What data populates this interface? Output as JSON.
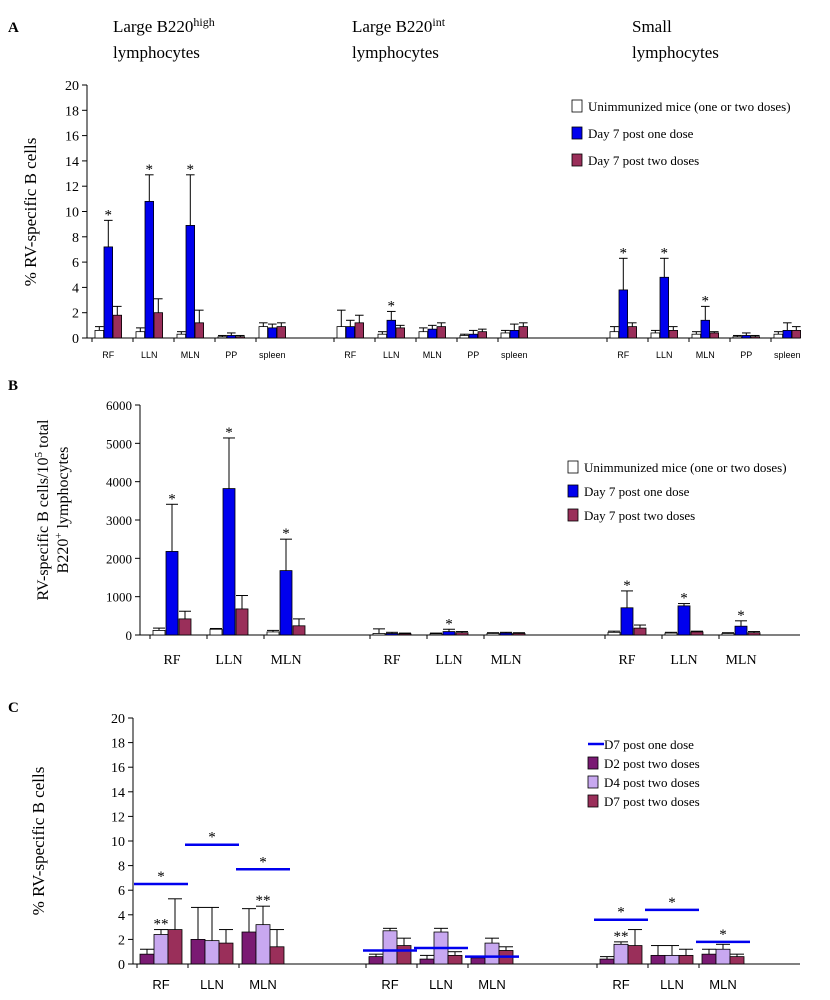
{
  "colors": {
    "unimmunized": "#ffffff",
    "one_dose": "#0000ee",
    "two_doses": "#9a2f5a",
    "d2": "#7a1a73",
    "d4": "#c8a8f0",
    "d7": "#9a2f5a",
    "line": "#0000ee"
  },
  "chart_data": [
    {
      "id": "A",
      "type": "bar",
      "panel_label": "A",
      "ylabel": "% RV-specific B cells",
      "ylim": [
        0,
        20
      ],
      "yticks": [
        "0",
        "2",
        "4",
        "6",
        "8",
        "10",
        "12",
        "14",
        "16",
        "18",
        "20"
      ],
      "group_titles": [
        {
          "line1": "Large B220",
          "sup": "high",
          "line2": "lymphocytes"
        },
        {
          "line1": "Large B220",
          "sup": "int",
          "line2": "lymphocytes"
        },
        {
          "line1": "Small",
          "sup": "",
          "line2": "lymphocytes"
        }
      ],
      "tick_labels": [
        [
          "RF",
          "LLN",
          "MLN",
          "PP",
          "spleen"
        ],
        [
          "RF",
          "LLN",
          "MLN",
          "PP",
          "spleen"
        ],
        [
          "RF",
          "LLN",
          "MLN",
          "PP",
          "spleen"
        ]
      ],
      "legend": [
        {
          "label": "Unimmunized mice (one or two doses)",
          "color": "#ffffff"
        },
        {
          "label": "Day 7 post one dose",
          "color": "#0000ee"
        },
        {
          "label": "Day 7 post two doses",
          "color": "#9a2f5a"
        }
      ],
      "series_colors": [
        "#ffffff",
        "#0000ee",
        "#9a2f5a"
      ],
      "values": [
        [
          [
            0.6,
            7.2,
            1.8
          ],
          [
            0.5,
            10.8,
            2.0
          ],
          [
            0.3,
            8.9,
            1.2
          ],
          [
            0.1,
            0.2,
            0.1
          ],
          [
            0.9,
            0.8,
            0.9
          ]
        ],
        [
          [
            0.9,
            0.9,
            1.2
          ],
          [
            0.3,
            1.4,
            0.8
          ],
          [
            0.5,
            0.7,
            0.9
          ],
          [
            0.2,
            0.3,
            0.5
          ],
          [
            0.4,
            0.6,
            0.9
          ]
        ],
        [
          [
            0.5,
            3.8,
            0.9
          ],
          [
            0.4,
            4.8,
            0.6
          ],
          [
            0.3,
            1.4,
            0.4
          ],
          [
            0.1,
            0.2,
            0.1
          ],
          [
            0.3,
            0.6,
            0.6
          ]
        ]
      ],
      "errors": [
        [
          [
            0.3,
            2.1,
            0.7
          ],
          [
            0.3,
            2.1,
            1.1
          ],
          [
            0.2,
            4.0,
            1.0
          ],
          [
            0.1,
            0.2,
            0.1
          ],
          [
            0.3,
            0.3,
            0.3
          ]
        ],
        [
          [
            1.3,
            0.5,
            0.6
          ],
          [
            0.2,
            0.7,
            0.2
          ],
          [
            0.3,
            0.3,
            0.3
          ],
          [
            0.1,
            0.3,
            0.2
          ],
          [
            0.2,
            0.5,
            0.3
          ]
        ],
        [
          [
            0.4,
            2.5,
            0.3
          ],
          [
            0.2,
            1.5,
            0.3
          ],
          [
            0.2,
            1.1,
            0.1
          ],
          [
            0.1,
            0.2,
            0.1
          ],
          [
            0.2,
            0.6,
            0.3
          ]
        ]
      ],
      "stars": [
        [
          [
            false,
            true,
            false
          ],
          [
            false,
            true,
            false
          ],
          [
            false,
            true,
            false
          ],
          [
            false,
            false,
            false
          ],
          [
            false,
            false,
            false
          ]
        ],
        [
          [
            false,
            false,
            false
          ],
          [
            false,
            true,
            false
          ],
          [
            false,
            false,
            false
          ],
          [
            false,
            false,
            false
          ],
          [
            false,
            false,
            false
          ]
        ],
        [
          [
            false,
            true,
            false
          ],
          [
            false,
            true,
            false
          ],
          [
            false,
            true,
            false
          ],
          [
            false,
            false,
            false
          ],
          [
            false,
            false,
            false
          ]
        ]
      ],
      "star_glyph": "*"
    },
    {
      "id": "B",
      "type": "bar",
      "panel_label": "B",
      "ylabel_line1": "RV-specific B cells/10",
      "ylabel_sup1": "5",
      "ylabel_line1b": " total",
      "ylabel_line2": "B220",
      "ylabel_sup2": "+",
      "ylabel_line2b": " lymphocytes",
      "ylim": [
        0,
        6000
      ],
      "yticks": [
        "0",
        "1000",
        "2000",
        "3000",
        "4000",
        "5000",
        "6000"
      ],
      "tick_labels": [
        [
          "RF",
          "LLN",
          "MLN"
        ],
        [
          "RF",
          "LLN",
          "MLN"
        ],
        [
          "RF",
          "LLN",
          "MLN"
        ]
      ],
      "legend": [
        {
          "label": "Unimmunized mice (one or two doses)",
          "color": "#ffffff"
        },
        {
          "label": "Day 7 post one dose",
          "color": "#0000ee"
        },
        {
          "label": "Day 7 post two doses",
          "color": "#9a2f5a"
        }
      ],
      "series_colors": [
        "#ffffff",
        "#0000ee",
        "#9a2f5a"
      ],
      "values": [
        [
          [
            120,
            2180,
            420
          ],
          [
            150,
            3820,
            680
          ],
          [
            80,
            1680,
            240
          ]
        ],
        [
          [
            40,
            40,
            30
          ],
          [
            30,
            90,
            60
          ],
          [
            40,
            50,
            40
          ]
        ],
        [
          [
            70,
            710,
            180
          ],
          [
            50,
            760,
            80
          ],
          [
            40,
            230,
            60
          ]
        ]
      ],
      "errors": [
        [
          [
            60,
            1230,
            200
          ],
          [
            20,
            1320,
            350
          ],
          [
            40,
            820,
            180
          ]
        ],
        [
          [
            120,
            30,
            20
          ],
          [
            20,
            60,
            30
          ],
          [
            20,
            20,
            20
          ]
        ],
        [
          [
            30,
            440,
            80
          ],
          [
            20,
            60,
            20
          ],
          [
            20,
            140,
            30
          ]
        ]
      ],
      "stars": [
        [
          [
            false,
            true,
            false
          ],
          [
            false,
            true,
            false
          ],
          [
            false,
            true,
            false
          ]
        ],
        [
          [
            false,
            false,
            false
          ],
          [
            false,
            true,
            false
          ],
          [
            false,
            false,
            false
          ]
        ],
        [
          [
            false,
            true,
            false
          ],
          [
            false,
            true,
            false
          ],
          [
            false,
            true,
            false
          ]
        ]
      ],
      "star_glyph": "*"
    },
    {
      "id": "C",
      "type": "bar",
      "panel_label": "C",
      "ylabel": "% RV-specific B cells",
      "ylim": [
        0,
        20
      ],
      "yticks": [
        "0",
        "2",
        "4",
        "6",
        "8",
        "10",
        "12",
        "14",
        "16",
        "18",
        "20"
      ],
      "tick_labels": [
        [
          "RF",
          "LLN",
          "MLN"
        ],
        [
          "RF",
          "LLN",
          "MLN"
        ],
        [
          "RF",
          "LLN",
          "MLN"
        ]
      ],
      "legend": [
        {
          "label": "D7 post one dose",
          "kind": "line",
          "color": "#0000ee"
        },
        {
          "label": "D2 post two doses",
          "kind": "bar",
          "color": "#7a1a73"
        },
        {
          "label": "D4 post two doses",
          "kind": "bar",
          "color": "#c8a8f0"
        },
        {
          "label": "D7 post two doses",
          "kind": "bar",
          "color": "#9a2f5a"
        }
      ],
      "series_colors": [
        "#7a1a73",
        "#c8a8f0",
        "#9a2f5a"
      ],
      "values": [
        [
          [
            0.8,
            2.4,
            2.8
          ],
          [
            2.0,
            1.9,
            1.7
          ],
          [
            2.6,
            3.2,
            1.4
          ]
        ],
        [
          [
            0.6,
            2.7,
            1.5
          ],
          [
            0.4,
            2.6,
            0.7
          ],
          [
            0.5,
            1.7,
            1.1
          ]
        ],
        [
          [
            0.4,
            1.6,
            1.5
          ],
          [
            0.7,
            0.7,
            0.7
          ],
          [
            0.8,
            1.2,
            0.6
          ]
        ]
      ],
      "errors": [
        [
          [
            0.4,
            0.4,
            2.5
          ],
          [
            2.6,
            2.7,
            1.1
          ],
          [
            1.9,
            1.5,
            1.4
          ]
        ],
        [
          [
            0.2,
            0.2,
            0.6
          ],
          [
            0.3,
            0.3,
            0.3
          ],
          [
            0.1,
            0.4,
            0.3
          ]
        ],
        [
          [
            0.2,
            0.2,
            1.3
          ],
          [
            0.8,
            0.8,
            0.5
          ],
          [
            0.4,
            0.4,
            0.2
          ]
        ]
      ],
      "stars": [
        [
          [
            false,
            true,
            false
          ],
          [
            false,
            false,
            false
          ],
          [
            false,
            true,
            false
          ]
        ],
        [
          [
            false,
            false,
            false
          ],
          [
            false,
            false,
            false
          ],
          [
            false,
            false,
            false
          ]
        ],
        [
          [
            false,
            true,
            false
          ],
          [
            false,
            false,
            false
          ],
          [
            false,
            false,
            false
          ]
        ]
      ],
      "star_glyph": "*",
      "double_star_glyph": "**",
      "d7_one_dose_lines": [
        [
          6.5,
          9.7,
          7.7
        ],
        [
          1.1,
          1.3,
          0.6
        ],
        [
          3.6,
          4.4,
          1.8
        ]
      ],
      "line_stars": [
        [
          true,
          true,
          true
        ],
        [
          false,
          false,
          false
        ],
        [
          true,
          true,
          true
        ]
      ]
    }
  ]
}
